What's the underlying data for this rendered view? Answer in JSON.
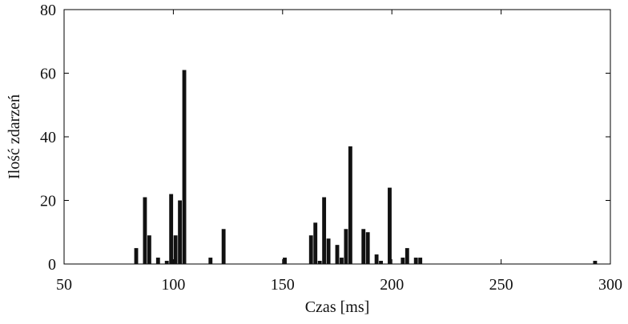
{
  "chart_data": {
    "type": "histogram",
    "x_label": "Czas [ms]",
    "y_label": "Ilość zdarzeń",
    "bins": [
      82,
      84,
      86,
      88,
      90,
      92,
      94,
      96,
      98,
      100,
      102,
      104,
      106,
      108,
      110,
      112,
      114,
      116,
      118,
      120,
      122,
      124,
      126,
      128,
      130,
      132,
      134,
      136,
      138,
      140,
      142,
      144,
      146,
      148,
      150,
      152,
      154,
      156,
      158,
      160,
      162,
      164,
      166,
      168,
      170,
      172,
      174,
      176,
      178,
      180,
      182,
      184,
      186,
      188,
      190,
      192,
      194,
      196,
      198,
      200,
      202,
      204,
      206,
      208,
      210,
      212,
      214,
      216,
      218,
      220,
      222,
      224,
      226,
      228,
      230,
      232,
      234,
      236,
      238,
      240,
      242,
      244,
      246,
      248,
      250,
      252,
      254,
      256,
      258,
      260,
      262,
      264,
      266,
      268,
      270,
      272,
      274,
      276,
      278,
      280,
      282,
      284,
      286,
      288,
      290,
      292,
      294
    ],
    "values": [
      5,
      0,
      21,
      9,
      0,
      2,
      0,
      1,
      22,
      9,
      20,
      61,
      0,
      0,
      0,
      0,
      0,
      2,
      0,
      0,
      11,
      0,
      0,
      0,
      0,
      0,
      0,
      0,
      0,
      0,
      0,
      0,
      0,
      0,
      2,
      0,
      0,
      0,
      0,
      0,
      9,
      13,
      1,
      21,
      8,
      0,
      6,
      2,
      11,
      37,
      0,
      0,
      11,
      10,
      0,
      3,
      1,
      0,
      24,
      0,
      0,
      2,
      5,
      0,
      2,
      2,
      0,
      0,
      0,
      0,
      0,
      0,
      0,
      0,
      0,
      0,
      0,
      0,
      0,
      0,
      0,
      0,
      0,
      0,
      0,
      0,
      0,
      0,
      0,
      0,
      0,
      0,
      0,
      0,
      0,
      0,
      0,
      0,
      0,
      0,
      0,
      0,
      0,
      0,
      0,
      1
    ],
    "color": "#111111",
    "xlim": [
      50,
      300
    ],
    "xticks": [
      50,
      100,
      150,
      200,
      250,
      300
    ],
    "ylim": [
      0,
      80
    ],
    "yticks": [
      0,
      20,
      40,
      60,
      80
    ],
    "grid": false
  }
}
